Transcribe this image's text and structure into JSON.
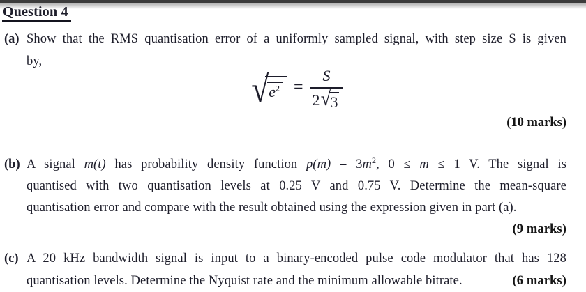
{
  "colors": {
    "text": "#1e1e2b",
    "marks": "#151515",
    "top_bar": "#3c3c3c"
  },
  "title": "Question 4",
  "part_a": {
    "label": "(a)",
    "line1": "Show that the RMS quantisation error of a uniformly sampled signal, with step size S is given",
    "line2": "by,",
    "formula": {
      "radical": "√",
      "base": "e",
      "exponent": "2",
      "equals": "=",
      "numerator": "S",
      "den_coefficient": "2",
      "den_radical": "√",
      "den_radicand": "3"
    },
    "marks": "(10 marks)"
  },
  "part_b": {
    "label": "(b)",
    "l1_s1": "A signal ",
    "l1_s2": "m(t)",
    "l1_s3": " has probability density function ",
    "l1_s4": "p(m)",
    "l1_s5": " = 3",
    "l1_s6": "m",
    "l1_s7": "2",
    "l1_s8": ", 0 ≤ ",
    "l1_s9": "m",
    "l1_s10": " ≤ 1 V. The signal is",
    "line2": "quantised with two quantisation levels at 0.25 V and 0.75 V. Determine the mean-square",
    "line3": "quantisation error and compare with the result obtained using the expression given in part (a).",
    "marks": "(9 marks)"
  },
  "part_c": {
    "label": "(c)",
    "line1": "A 20 kHz bandwidth signal is input to a binary-encoded pulse code modulator that has 128",
    "line2": "quantisation levels. Determine the Nyquist rate and the minimum allowable bitrate.",
    "marks": "(6 marks)"
  }
}
